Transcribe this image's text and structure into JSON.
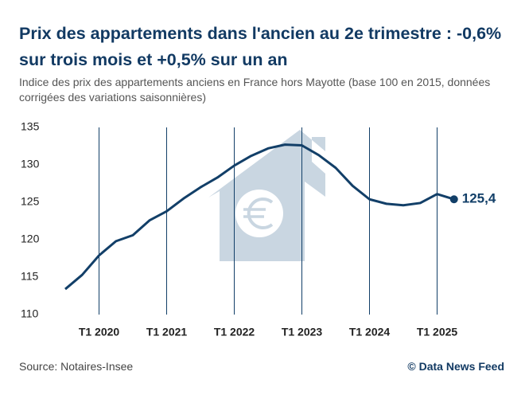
{
  "title": "Prix des appartements dans l'ancien au 2e trimestre : -0,6% sur trois mois et +0,5% sur un an",
  "chart_data": {
    "type": "line",
    "subtitle": "Indice des prix des appartements anciens en France hors Mayotte (base 100 en 2015, données corrigées des variations saisonnières)",
    "categories": [
      null,
      null,
      "T1 2020",
      null,
      null,
      null,
      "T1 2021",
      null,
      null,
      null,
      "T1 2022",
      null,
      null,
      null,
      "T1 2023",
      null,
      null,
      null,
      "T1 2024",
      null,
      null,
      null,
      "T1 2025",
      null
    ],
    "values": [
      113.4,
      115.3,
      117.9,
      119.8,
      120.6,
      122.6,
      123.8,
      125.5,
      127.0,
      128.3,
      129.9,
      131.2,
      132.2,
      132.7,
      132.6,
      131.3,
      129.6,
      127.2,
      125.4,
      124.8,
      124.6,
      124.9,
      126.1,
      125.4
    ],
    "value_labels": [
      null,
      null,
      null,
      null,
      null,
      null,
      null,
      null,
      null,
      null,
      null,
      null,
      null,
      null,
      null,
      null,
      null,
      null,
      null,
      null,
      null,
      null,
      null,
      "125,4"
    ],
    "color": "#123f68",
    "ylim": [
      110,
      135
    ],
    "yticks": [
      110,
      115,
      120,
      125,
      130,
      135
    ],
    "source": "Source: Notaires-Insee"
  },
  "credit": "© Data News Feed"
}
